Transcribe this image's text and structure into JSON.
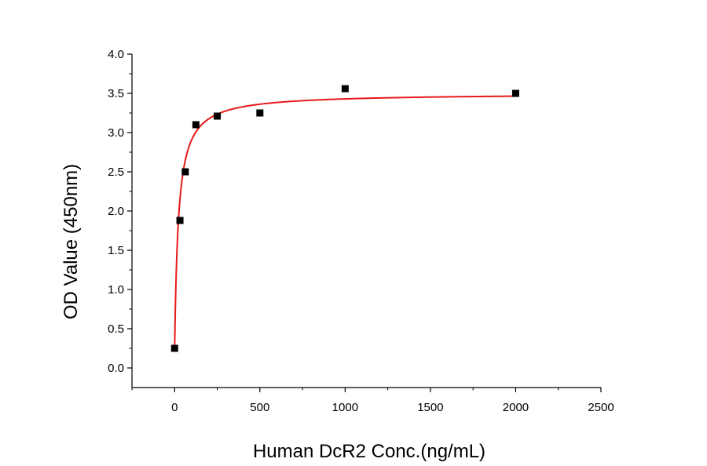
{
  "chart_data": {
    "type": "scatter",
    "title": "",
    "xlabel": "Human DcR2 Conc.(ng/mL)",
    "ylabel": "OD Value (450nm)",
    "xlim": [
      -250,
      2500
    ],
    "ylim": [
      -0.25,
      4.0
    ],
    "x_ticks": [
      0,
      500,
      1000,
      1500,
      2000,
      2500
    ],
    "x_tick_labels": [
      "0",
      "500",
      "1000",
      "1500",
      "2000",
      "2500"
    ],
    "y_ticks": [
      0.0,
      0.5,
      1.0,
      1.5,
      2.0,
      2.5,
      3.0,
      3.5,
      4.0
    ],
    "y_tick_labels": [
      "0.0",
      "0.5",
      "1.0",
      "1.5",
      "2.0",
      "2.5",
      "3.0",
      "3.5",
      "4.0"
    ],
    "grid": false,
    "legend": "none",
    "series": [
      {
        "kind": "points",
        "marker": "square",
        "color": "#000000",
        "points": [
          {
            "x": 0,
            "y": 0.25
          },
          {
            "x": 31.25,
            "y": 1.88
          },
          {
            "x": 62.5,
            "y": 2.5
          },
          {
            "x": 125,
            "y": 3.1
          },
          {
            "x": 250,
            "y": 3.21
          },
          {
            "x": 500,
            "y": 3.25
          },
          {
            "x": 1000,
            "y": 3.56
          },
          {
            "x": 2000,
            "y": 3.5
          }
        ]
      },
      {
        "kind": "fit-curve",
        "color": "#e8191a",
        "model": "hyperbolic",
        "params": {
          "bottom": 0.22,
          "top": 3.5,
          "half": 22
        }
      }
    ]
  }
}
